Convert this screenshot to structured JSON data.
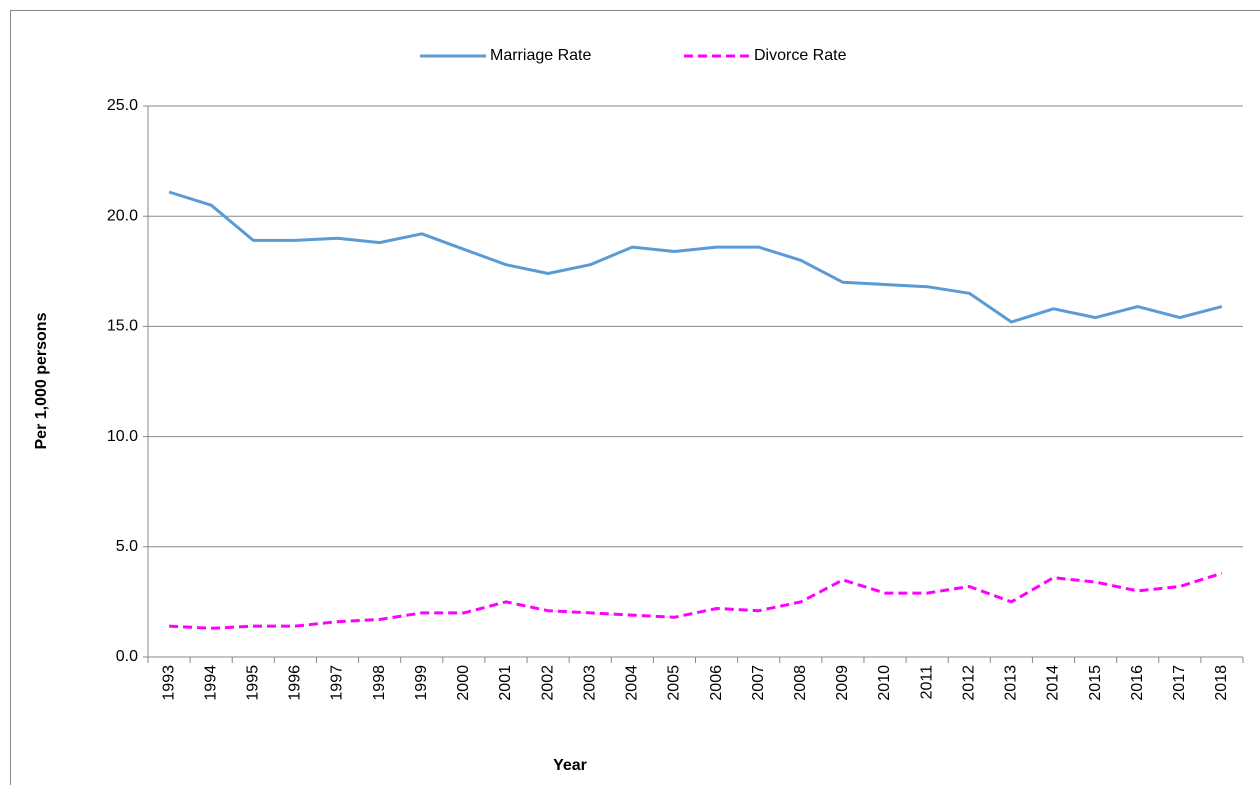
{
  "chart_data": {
    "type": "line",
    "x_label": "Year",
    "y_label": "Per 1,000 persons",
    "categories": [
      "1993",
      "1994",
      "1995",
      "1996",
      "1997",
      "1998",
      "1999",
      "2000",
      "2001",
      "2002",
      "2003",
      "2004",
      "2005",
      "2006",
      "2007",
      "2008",
      "2009",
      "2010",
      "2011",
      "2012",
      "2013",
      "2014",
      "2015",
      "2016",
      "2017",
      "2018"
    ],
    "series": [
      {
        "name": "Marriage Rate",
        "color": "#5b9bd5",
        "line_style": "solid",
        "values": [
          21.1,
          20.5,
          18.9,
          18.9,
          19.0,
          18.8,
          19.2,
          18.5,
          17.8,
          17.4,
          17.8,
          18.6,
          18.4,
          18.6,
          18.6,
          18.0,
          17.0,
          16.9,
          16.8,
          16.5,
          15.2,
          15.8,
          15.4,
          15.9,
          15.4,
          15.9
        ]
      },
      {
        "name": "Divorce Rate",
        "color": "#ff00ff",
        "line_style": "dashed",
        "values": [
          1.4,
          1.3,
          1.4,
          1.4,
          1.6,
          1.7,
          2.0,
          2.0,
          2.5,
          2.1,
          2.0,
          1.9,
          1.8,
          2.2,
          2.1,
          2.5,
          3.5,
          2.9,
          2.9,
          3.2,
          2.5,
          3.6,
          3.4,
          3.0,
          3.2,
          3.8
        ]
      }
    ],
    "ylim": [
      0,
      25
    ],
    "yticks": [
      {
        "value": 0,
        "label": "0.0"
      },
      {
        "value": 5,
        "label": "5.0"
      },
      {
        "value": 10,
        "label": "10.0"
      },
      {
        "value": 15,
        "label": "15.0"
      },
      {
        "value": 20,
        "label": "20.0"
      },
      {
        "value": 25,
        "label": "25.0"
      }
    ],
    "grid": true,
    "legend": "top"
  }
}
